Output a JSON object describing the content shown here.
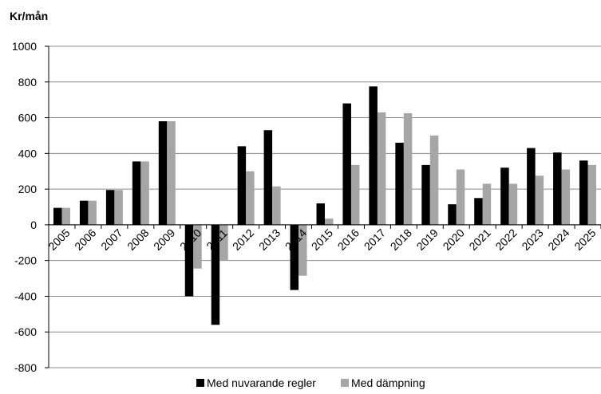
{
  "chart_data": {
    "type": "bar",
    "unit_label": "Kr/mån",
    "categories": [
      "2005",
      "2006",
      "2007",
      "2008",
      "2009",
      "2010",
      "2011",
      "2012",
      "2013",
      "2014",
      "2015",
      "2016",
      "2017",
      "2018",
      "2019",
      "2020",
      "2021",
      "2022",
      "2023",
      "2024",
      "2025"
    ],
    "series": [
      {
        "name": "Med nuvarande regler",
        "color": "#000000",
        "values": [
          95,
          135,
          195,
          355,
          580,
          -400,
          -560,
          440,
          530,
          -365,
          120,
          680,
          775,
          460,
          335,
          115,
          150,
          320,
          430,
          405,
          360
        ]
      },
      {
        "name": "Med dämpning",
        "color": "#a6a6a6",
        "values": [
          95,
          135,
          195,
          355,
          580,
          -245,
          -200,
          300,
          215,
          -285,
          35,
          335,
          630,
          625,
          500,
          310,
          230,
          230,
          275,
          310,
          335
        ]
      }
    ],
    "yticks": [
      -800,
      -600,
      -400,
      -200,
      0,
      200,
      400,
      600,
      800,
      1000
    ],
    "ylim": [
      -800,
      1000
    ],
    "grid": true,
    "legend": "bottom"
  }
}
